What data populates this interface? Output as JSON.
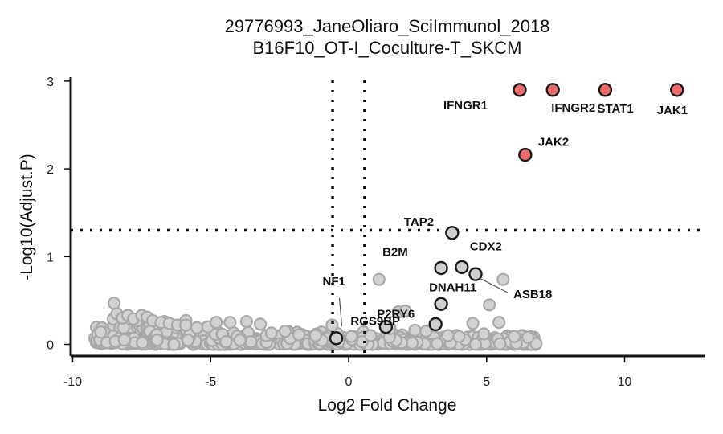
{
  "chart_data": {
    "type": "scatter",
    "title": "29776993_JaneOliaro_SciImmunol_2018",
    "subtitle": "B16F10_OT-I_Coculture-T_SKCM",
    "xlabel": "Log2 Fold Change",
    "ylabel": "-Log10(Adjust.P)",
    "xlim": [
      -10.1,
      13.1
    ],
    "ylim": [
      -0.13,
      3.05
    ],
    "x_ticks": [
      -10,
      -5,
      0,
      5,
      10
    ],
    "y_ticks": [
      0,
      1,
      2,
      3
    ],
    "x_tick_labels": [
      "-10",
      "-5",
      "0",
      "5",
      "10"
    ],
    "y_tick_labels": [
      "0",
      "1",
      "2",
      "3"
    ],
    "thresholds": {
      "x": [
        -0.58,
        0.58
      ],
      "y": 1.3
    },
    "grid": false,
    "colors": {
      "significant": "#f06c6c",
      "labeled": "#cfcfcf",
      "background": "#d2d2d2",
      "outline": "#1a1a1a",
      "background_outline": "#a8a8a8"
    },
    "series": [
      {
        "group": "significant",
        "points": [
          {
            "label": "IFNGR1",
            "x": 6.2,
            "y": 2.9
          },
          {
            "label": "IFNGR2",
            "x": 7.4,
            "y": 2.9
          },
          {
            "label": "STAT1",
            "x": 9.3,
            "y": 2.9
          },
          {
            "label": "JAK1",
            "x": 11.9,
            "y": 2.9
          },
          {
            "label": "JAK2",
            "x": 6.4,
            "y": 2.16
          }
        ]
      },
      {
        "group": "labeled",
        "points": [
          {
            "label": "TAP2",
            "x": 3.75,
            "y": 1.27
          },
          {
            "label": "CDX2",
            "x": 4.1,
            "y": 0.88
          },
          {
            "label": "B2M",
            "x": 3.35,
            "y": 0.87
          },
          {
            "label": "ASB18",
            "x": 4.6,
            "y": 0.8
          },
          {
            "label": "DNAH11",
            "x": 3.35,
            "y": 0.46
          },
          {
            "label": "P2RY6",
            "x": 3.15,
            "y": 0.23
          },
          {
            "label": "RGS9BP",
            "x": 1.35,
            "y": 0.2
          },
          {
            "label": "NF1",
            "x": -0.45,
            "y": 0.07
          }
        ]
      },
      {
        "group": "background",
        "points": [
          {
            "x": -8.5,
            "y": 0.47
          },
          {
            "x": -8.4,
            "y": 0.35
          },
          {
            "x": -8.2,
            "y": 0.3
          },
          {
            "x": -8.0,
            "y": 0.33
          },
          {
            "x": -7.8,
            "y": 0.29
          },
          {
            "x": -7.5,
            "y": 0.33
          },
          {
            "x": -7.3,
            "y": 0.31
          },
          {
            "x": -7.1,
            "y": 0.27
          },
          {
            "x": -6.8,
            "y": 0.25
          },
          {
            "x": -6.5,
            "y": 0.24
          },
          {
            "x": -6.2,
            "y": 0.22
          },
          {
            "x": -5.9,
            "y": 0.22
          },
          {
            "x": -5.5,
            "y": 0.19
          },
          {
            "x": -5.1,
            "y": 0.2
          },
          {
            "x": -4.8,
            "y": 0.25
          },
          {
            "x": -4.3,
            "y": 0.25
          },
          {
            "x": -3.7,
            "y": 0.26
          },
          {
            "x": -3.2,
            "y": 0.23
          },
          {
            "x": -2.8,
            "y": 0.13
          },
          {
            "x": -2.3,
            "y": 0.15
          },
          {
            "x": -1.8,
            "y": 0.11
          },
          {
            "x": -1.2,
            "y": 0.1
          },
          {
            "x": -0.6,
            "y": 0.22
          },
          {
            "x": 0.1,
            "y": 0.09
          },
          {
            "x": 0.8,
            "y": 0.1
          },
          {
            "x": 1.1,
            "y": 0.74
          },
          {
            "x": 1.5,
            "y": 0.18
          },
          {
            "x": 1.8,
            "y": 0.37
          },
          {
            "x": 2.05,
            "y": 0.38
          },
          {
            "x": 2.4,
            "y": 0.16
          },
          {
            "x": 2.8,
            "y": 0.15
          },
          {
            "x": 3.6,
            "y": 0.1
          },
          {
            "x": 4.0,
            "y": 0.09
          },
          {
            "x": 4.5,
            "y": 0.24
          },
          {
            "x": 4.9,
            "y": 0.12
          },
          {
            "x": 5.1,
            "y": 0.45
          },
          {
            "x": 5.45,
            "y": 0.25
          },
          {
            "x": 5.6,
            "y": 0.74
          },
          {
            "x": 6.0,
            "y": 0.09
          },
          {
            "x": 6.5,
            "y": 0.08
          }
        ]
      }
    ]
  }
}
